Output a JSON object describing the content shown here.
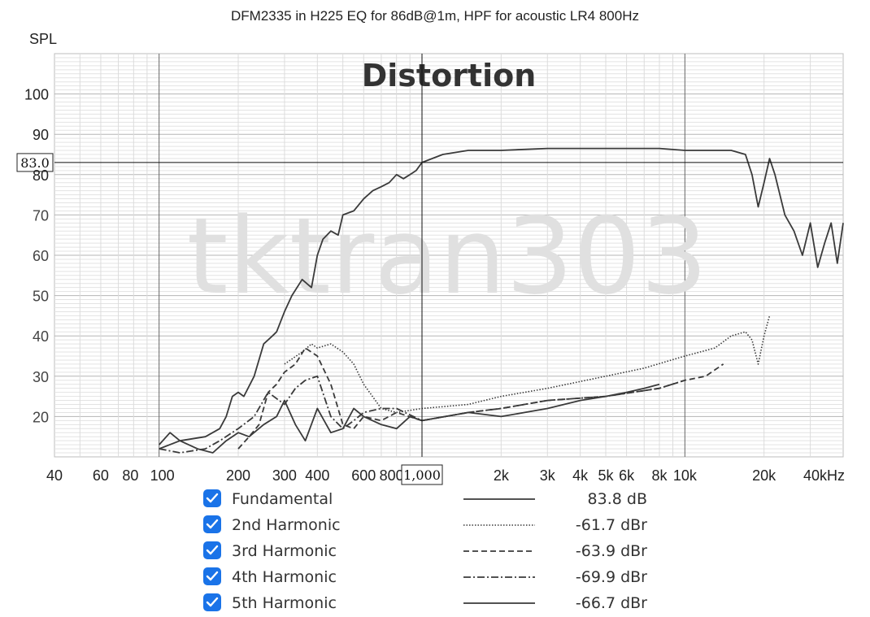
{
  "chart_data": {
    "type": "line",
    "title": "DFM2335 in H225 EQ for 86dB@1m, HPF for acoustic LR4 800Hz",
    "overlay_title": "Distortion",
    "watermark": "tktran303",
    "ylabel": "SPL",
    "xscale": "log",
    "xlim": [
      40,
      40000
    ],
    "ylim": [
      10,
      100
    ],
    "y_ticks": [
      "20",
      "30",
      "40",
      "50",
      "60",
      "70",
      "80",
      "90",
      "100"
    ],
    "x_ticks": [
      "40",
      "60",
      "80",
      "100",
      "200",
      "300",
      "400",
      "600",
      "800",
      "1,000",
      "2k",
      "3k",
      "4k",
      "5k",
      "6k",
      "8k",
      "10k",
      "20k",
      "40kHz"
    ],
    "cursor": {
      "x": 1000,
      "y": 83.0,
      "x_label": "1,000",
      "y_label": "83.0"
    },
    "grid": true,
    "legend_position": "below",
    "series": [
      {
        "name": "Fundamental",
        "style": "solid",
        "x": [
          100,
          120,
          150,
          170,
          180,
          190,
          200,
          210,
          230,
          250,
          270,
          280,
          300,
          320,
          350,
          380,
          400,
          420,
          450,
          480,
          500,
          550,
          600,
          650,
          700,
          750,
          800,
          850,
          900,
          950,
          1000,
          1200,
          1500,
          2000,
          3000,
          5000,
          8000,
          10000,
          12000,
          15000,
          17000,
          18000,
          19000,
          20000,
          21000,
          22000,
          24000,
          26000,
          28000,
          30000,
          32000,
          34000,
          36000,
          38000,
          40000
        ],
        "y": [
          12,
          14,
          15,
          17,
          20,
          25,
          26,
          25,
          30,
          38,
          40,
          41,
          46,
          50,
          54,
          52,
          60,
          64,
          66,
          65,
          70,
          71,
          74,
          76,
          77,
          78,
          80,
          79,
          80,
          81,
          83,
          85,
          86,
          86,
          86.5,
          86.5,
          86.5,
          86,
          86,
          86,
          85,
          80,
          72,
          78,
          84,
          80,
          70,
          66,
          60,
          68,
          57,
          63,
          68,
          58,
          68
        ]
      },
      {
        "name": "2nd Harmonic",
        "style": "dotted",
        "x": [
          300,
          350,
          380,
          400,
          450,
          500,
          550,
          600,
          700,
          800,
          1000,
          1500,
          2000,
          3000,
          5000,
          7000,
          10000,
          13000,
          15000,
          17000,
          18000,
          19000,
          20000,
          21000
        ],
        "y": [
          33,
          36,
          38,
          37,
          38,
          36,
          33,
          28,
          22,
          21,
          22,
          23,
          25,
          27,
          30,
          32,
          35,
          37,
          40,
          41,
          39,
          33,
          40,
          45
        ]
      },
      {
        "name": "3rd Harmonic",
        "style": "dashed",
        "x": [
          200,
          220,
          240,
          260,
          280,
          300,
          330,
          360,
          400,
          450,
          500,
          550,
          600,
          700,
          800,
          1000,
          1500,
          2000,
          3000,
          5000,
          8000,
          10000,
          12000,
          14000
        ],
        "y": [
          12,
          15,
          18,
          26,
          28,
          31,
          33,
          37,
          35,
          28,
          18,
          17,
          20,
          19,
          21,
          19,
          21,
          22,
          24,
          25,
          27,
          29,
          30,
          33
        ]
      },
      {
        "name": "4th Harmonic",
        "style": "dashdot",
        "x": [
          100,
          120,
          150,
          170,
          200,
          230,
          260,
          300,
          330,
          360,
          400,
          450,
          500,
          550,
          600,
          700,
          800,
          1000,
          1500,
          2000,
          3000,
          5000,
          8000,
          10000
        ],
        "y": [
          12,
          11,
          12,
          14,
          17,
          20,
          26,
          23,
          27,
          29,
          30,
          20,
          17,
          19,
          21,
          22,
          22,
          19,
          21,
          22,
          24,
          25,
          27,
          29
        ]
      },
      {
        "name": "5th Harmonic",
        "style": "solid",
        "x": [
          100,
          110,
          120,
          140,
          160,
          180,
          200,
          220,
          250,
          280,
          300,
          330,
          360,
          400,
          450,
          500,
          550,
          600,
          700,
          800,
          900,
          1000,
          1500,
          2000,
          3000,
          4000,
          5000,
          6000,
          7000,
          8000
        ],
        "y": [
          13,
          16,
          14,
          12,
          11,
          14,
          16,
          15,
          18,
          20,
          24,
          18,
          14,
          22,
          16,
          17,
          22,
          20,
          18,
          17,
          20,
          19,
          21,
          20,
          22,
          24,
          25,
          26,
          27,
          28
        ]
      }
    ]
  },
  "legend": {
    "items": [
      {
        "label": "Fundamental",
        "value": "83.8 dB",
        "style": "solid"
      },
      {
        "label": "2nd Harmonic",
        "value": "-61.7 dBr",
        "style": "dotted"
      },
      {
        "label": "3rd Harmonic",
        "value": "-63.9 dBr",
        "style": "dashed"
      },
      {
        "label": "4th Harmonic",
        "value": "-69.9 dBr",
        "style": "dashdot"
      },
      {
        "label": "5th Harmonic",
        "value": "-66.7 dBr",
        "style": "solid"
      }
    ]
  },
  "colors": {
    "curve": "#3a3a3a",
    "grid": "#c8c8c8",
    "axis": "#222222",
    "checkbox": "#1a73e8",
    "watermark": "#e0e0e0"
  }
}
